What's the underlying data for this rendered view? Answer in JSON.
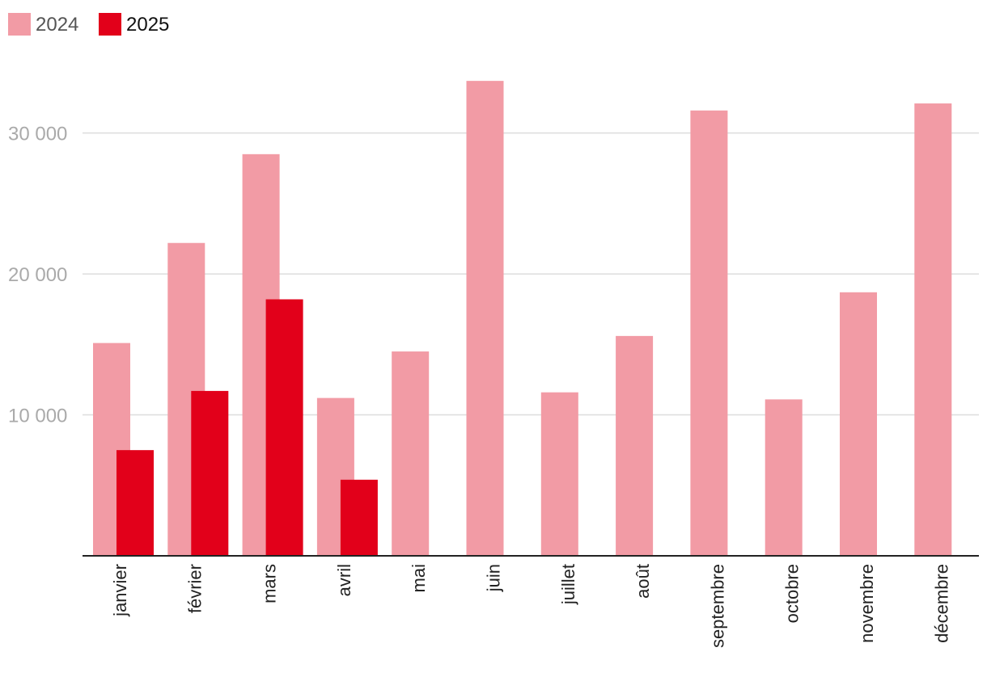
{
  "chart_data": {
    "type": "bar",
    "title": "",
    "xlabel": "",
    "ylabel": "",
    "categories": [
      "janvier",
      "février",
      "mars",
      "avril",
      "mai",
      "juin",
      "juillet",
      "août",
      "septembre",
      "octobre",
      "novembre",
      "décembre"
    ],
    "series": [
      {
        "name": "2024",
        "color": "#f29ba5",
        "values": [
          15100,
          22200,
          28500,
          11200,
          14500,
          33700,
          11600,
          15600,
          31600,
          11100,
          18700,
          32100
        ]
      },
      {
        "name": "2025",
        "color": "#e2001a",
        "values": [
          7500,
          11700,
          18200,
          5400,
          null,
          null,
          null,
          null,
          null,
          null,
          null,
          null
        ]
      }
    ],
    "yticks": [
      10000,
      20000,
      30000
    ],
    "ytick_labels": [
      "10 000",
      "20 000",
      "30 000"
    ],
    "ylim": [
      0,
      36000
    ],
    "grid": true,
    "legend_position": "top-left",
    "colors": {
      "grid": "#dddddd",
      "axis": "#222222",
      "ytick": "#aaaaaa"
    }
  }
}
